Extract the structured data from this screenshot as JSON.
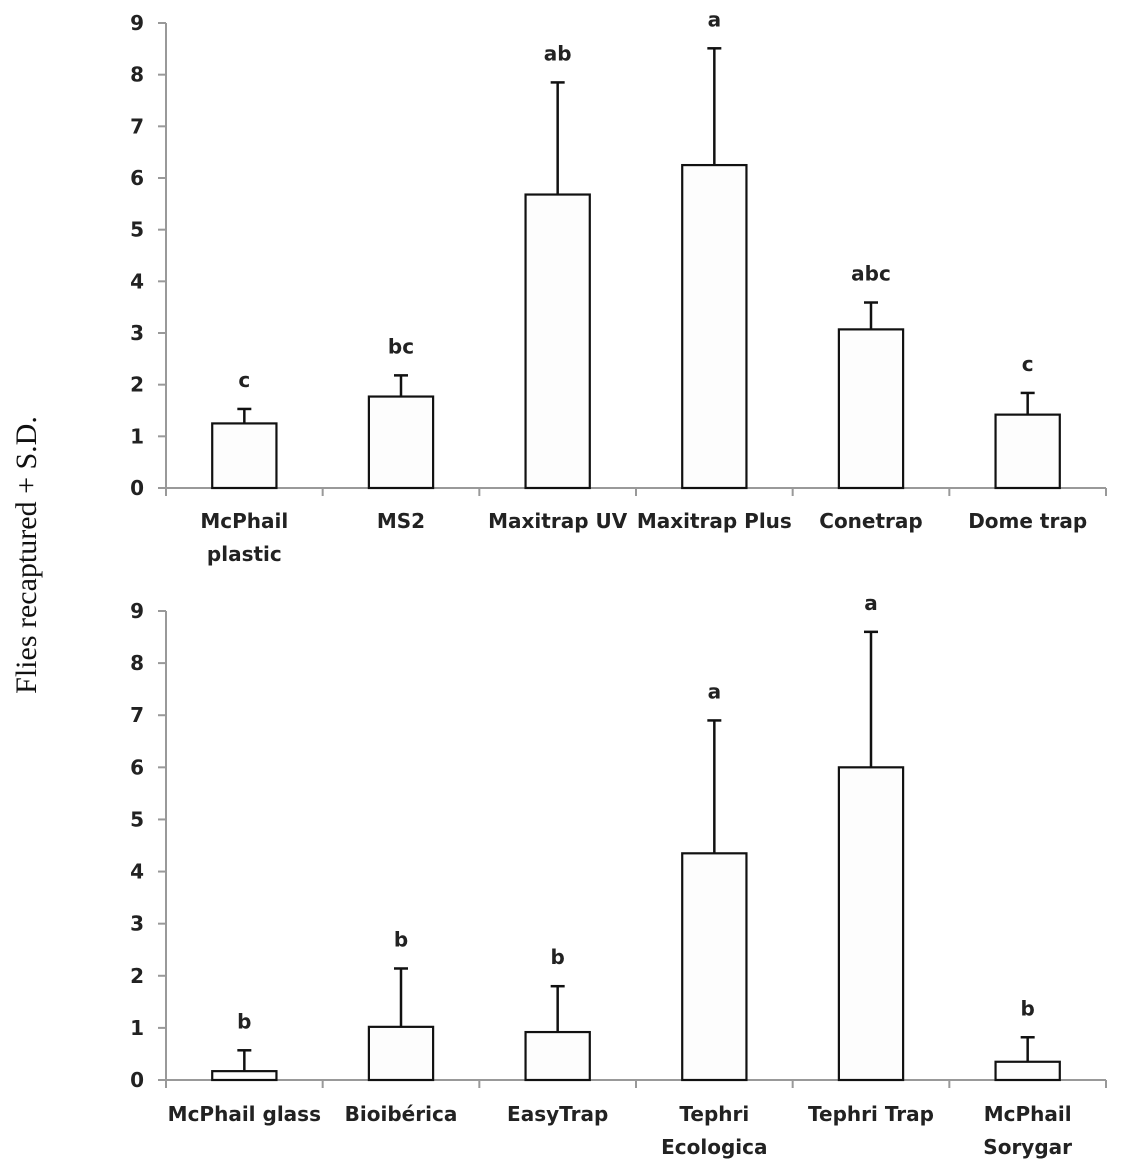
{
  "ylabel": "Flies recaptured + S.D.",
  "chart_data": [
    {
      "type": "bar",
      "ylabel": "Flies recaptured + S.D.",
      "ylim": [
        0,
        9
      ],
      "yticks": [
        0,
        1,
        2,
        3,
        4,
        5,
        6,
        7,
        8,
        9
      ],
      "categories": [
        [
          "McPhail",
          "plastic"
        ],
        [
          "MS2"
        ],
        [
          "Maxitrap UV"
        ],
        [
          "Maxitrap Plus"
        ],
        [
          "Conetrap"
        ],
        [
          "Dome trap"
        ]
      ],
      "values": [
        1.25,
        1.77,
        5.68,
        6.25,
        3.07,
        1.42
      ],
      "errors": [
        0.28,
        0.41,
        2.17,
        2.26,
        0.52,
        0.42
      ],
      "significance": [
        "c",
        "bc",
        "ab",
        "a",
        "abc",
        "c"
      ],
      "bar_color": "#fdfdfd",
      "edge_color": "#111111"
    },
    {
      "type": "bar",
      "ylabel": "Flies recaptured + S.D.",
      "ylim": [
        0,
        9
      ],
      "yticks": [
        0,
        1,
        2,
        3,
        4,
        5,
        6,
        7,
        8,
        9
      ],
      "categories": [
        [
          "McPhail glass"
        ],
        [
          "Bioibérica"
        ],
        [
          "EasyTrap"
        ],
        [
          "Tephri",
          "Ecologica"
        ],
        [
          "Tephri Trap"
        ],
        [
          "McPhail",
          "Sorygar"
        ]
      ],
      "values": [
        0.17,
        1.02,
        0.92,
        4.35,
        6.0,
        0.35
      ],
      "errors": [
        0.4,
        1.12,
        0.88,
        2.55,
        2.6,
        0.47
      ],
      "significance": [
        "b",
        "b",
        "b",
        "a",
        "a",
        "b"
      ],
      "bar_color": "#fdfdfd",
      "edge_color": "#111111"
    }
  ]
}
